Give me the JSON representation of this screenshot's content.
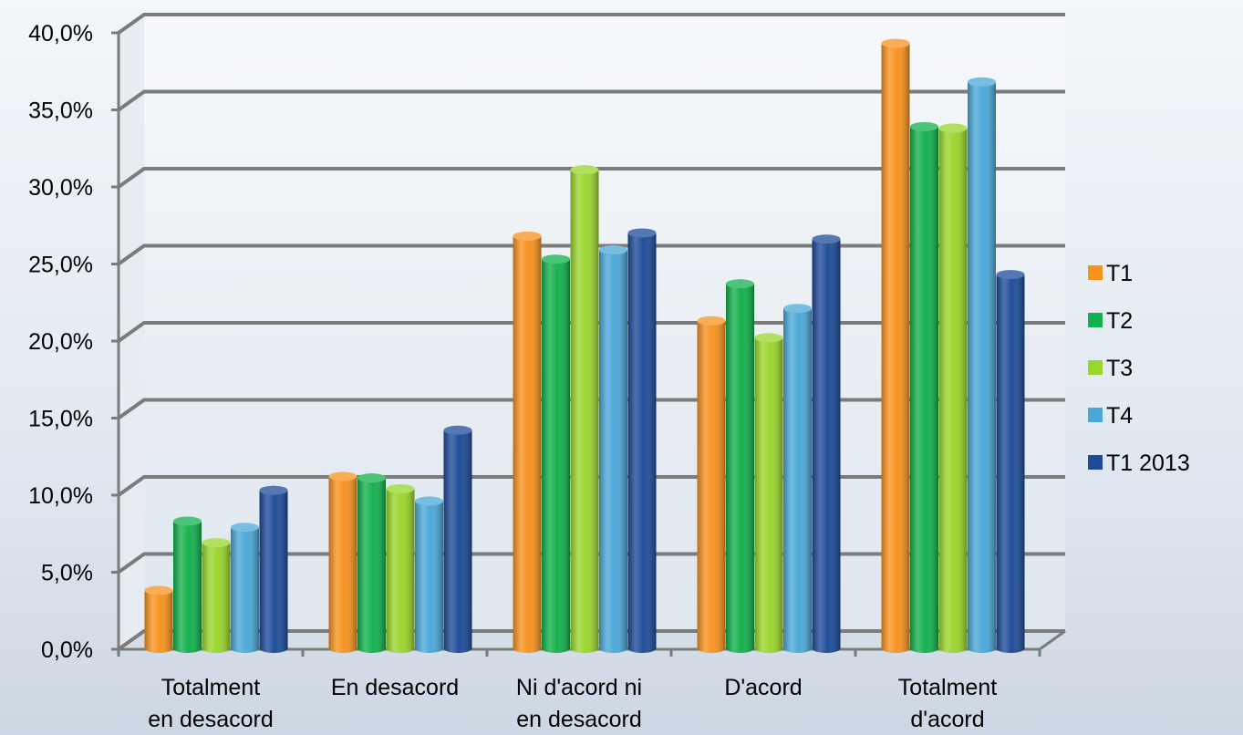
{
  "chart_data": {
    "type": "bar",
    "categories": [
      [
        "Totalment",
        "en desacord"
      ],
      [
        "En desacord"
      ],
      [
        "Ni d'acord ni",
        "en desacord"
      ],
      [
        "D'acord"
      ],
      [
        "Totalment",
        "d'acord"
      ]
    ],
    "series": [
      {
        "name": "T1",
        "color": "#f7921e",
        "values": [
          3.4,
          10.8,
          26.4,
          20.9,
          38.9
        ]
      },
      {
        "name": "T2",
        "color": "#12b04c",
        "values": [
          7.9,
          10.7,
          24.9,
          23.3,
          33.5
        ]
      },
      {
        "name": "T3",
        "color": "#9ad52b",
        "values": [
          6.5,
          10.0,
          30.7,
          19.8,
          33.4
        ]
      },
      {
        "name": "T4",
        "color": "#4aa8d8",
        "values": [
          7.5,
          9.2,
          25.5,
          21.7,
          36.4
        ]
      },
      {
        "name": "T1 2013",
        "color": "#1c4a98",
        "values": [
          9.9,
          13.8,
          26.6,
          26.2,
          23.9
        ]
      }
    ],
    "yticks": [
      "0,0%",
      "5,0%",
      "10,0%",
      "15,0%",
      "20,0%",
      "25,0%",
      "30,0%",
      "35,0%",
      "40,0%"
    ],
    "ylim": [
      0,
      40
    ],
    "grid": true,
    "legend_position": "right"
  }
}
